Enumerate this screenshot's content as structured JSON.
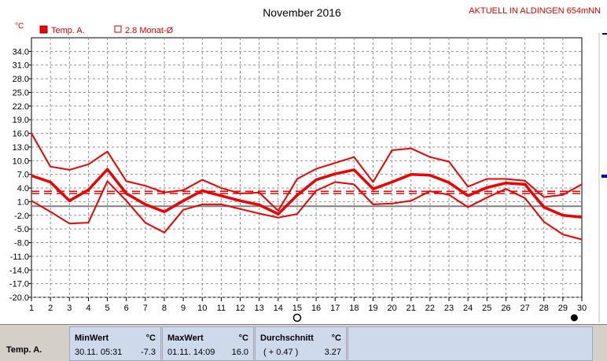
{
  "header": {
    "title": "November 2016",
    "station": "AKTUELL IN ALDINGEN 654mNN",
    "unit": "°C"
  },
  "legend": {
    "items": [
      {
        "label": "Temp. A.",
        "filled": true
      },
      {
        "label": "2.8 Monat-Ø",
        "filled": false
      }
    ]
  },
  "colors": {
    "series": "#ee0000",
    "zero_line": "#808080",
    "grid": "#909090",
    "panel": "#cfd9ec"
  },
  "icons": [
    "circle-marker-icon",
    "filled-dot-icon"
  ],
  "chart_data": {
    "type": "line",
    "title": "November 2016",
    "ylabel": "°C",
    "x": [
      1,
      2,
      3,
      4,
      5,
      6,
      7,
      8,
      9,
      10,
      11,
      12,
      13,
      14,
      15,
      16,
      17,
      18,
      19,
      20,
      21,
      22,
      23,
      24,
      25,
      26,
      27,
      28,
      29,
      30
    ],
    "ylim": [
      -20,
      37
    ],
    "yticks": [
      34.0,
      31.0,
      28.0,
      25.0,
      22.0,
      19.0,
      16.0,
      13.0,
      10.0,
      7.0,
      4.0,
      1.0,
      -2.0,
      -5.0,
      -8.0,
      -11.0,
      -14.0,
      -17.0,
      -20.0
    ],
    "grid": true,
    "legend_position": "top-left",
    "series": [
      {
        "name": "Temp. A.",
        "role": "max",
        "values": [
          16.0,
          8.7,
          8.0,
          9.2,
          12.0,
          5.5,
          4.5,
          3.0,
          3.5,
          5.8,
          4.0,
          2.8,
          3.0,
          -1.0,
          6.0,
          8.2,
          9.5,
          10.8,
          5.3,
          12.3,
          12.7,
          10.8,
          9.8,
          4.3,
          6.0,
          6.0,
          5.6,
          2.0,
          2.5,
          4.8
        ]
      },
      {
        "name": "Temp. A.",
        "role": "mean",
        "values": [
          6.7,
          5.3,
          1.2,
          3.6,
          8.1,
          2.8,
          0.4,
          -1.2,
          1.2,
          3.4,
          2.3,
          1.2,
          0.3,
          -1.7,
          2.4,
          5.8,
          7.1,
          8.0,
          3.8,
          5.3,
          7.0,
          6.8,
          5.2,
          2.3,
          4.1,
          5.1,
          4.8,
          -0.2,
          -2.0,
          -2.4
        ]
      },
      {
        "name": "Temp. A.",
        "role": "min",
        "values": [
          1.2,
          -1.2,
          -3.8,
          -3.6,
          5.5,
          1.2,
          -3.6,
          -5.8,
          -0.8,
          0.4,
          0.4,
          -0.6,
          -1.6,
          -2.5,
          -1.7,
          3.4,
          5.3,
          4.8,
          0.4,
          0.6,
          1.2,
          3.3,
          2.5,
          -0.2,
          1.9,
          3.8,
          1.8,
          -3.4,
          -6.2,
          -7.3
        ]
      }
    ],
    "reference_lines": [
      {
        "name": "2.8 Monat-Ø",
        "values": [
          2.8,
          3.27
        ],
        "style": "dashed"
      }
    ]
  },
  "stats": {
    "row_label": "Temp. A.",
    "min": {
      "header": "MinWert",
      "unit": "°C",
      "time": "30.11.  05:31",
      "value": "-7.3"
    },
    "max": {
      "header": "MaxWert",
      "unit": "°C",
      "time": "01.11.  14:09",
      "value": "16.0"
    },
    "avg": {
      "header": "Durchschnitt",
      "unit": "°C",
      "delta": "( + 0.47 )",
      "value": "3.27"
    }
  }
}
